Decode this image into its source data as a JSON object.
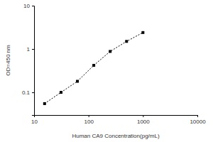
{
  "chart_data": {
    "type": "line",
    "x_label": "Human CA9 Concentration(pg/mL)",
    "y_label": "OD=450 nm",
    "x": [
      15.6,
      31.25,
      62.5,
      125,
      250,
      500,
      1000
    ],
    "values": [
      0.055,
      0.1,
      0.18,
      0.42,
      0.88,
      1.5,
      2.4
    ],
    "color": "#000000",
    "marker": "square",
    "line_style": "dotted",
    "log": true,
    "xlim": [
      10,
      10000
    ],
    "xticks": [
      10,
      100,
      1000,
      10000
    ],
    "ylim": [
      0.03,
      10
    ],
    "yticks": [
      0.1,
      1,
      10
    ],
    "grid": false
  }
}
